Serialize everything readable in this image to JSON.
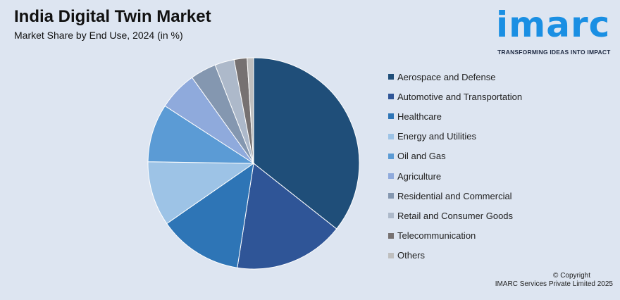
{
  "header": {
    "title": "India Digital Twin Market",
    "subtitle": "Market Share by End Use, 2024 (in %)"
  },
  "logo": {
    "word": "imarc",
    "tagline": "TRANSFORMING IDEAS INTO IMPACT",
    "color": "#1a8fe3"
  },
  "footer": {
    "copyright": "© Copyright",
    "company": "IMARC Services Private Limited 2025"
  },
  "chart_data": {
    "type": "pie",
    "title": "India Digital Twin Market",
    "subtitle": "Market Share by End Use, 2024 (in %)",
    "legend_position": "right",
    "categories": [
      "Aerospace and Defense",
      "Automotive and Transportation",
      "Healthcare",
      "Energy and Utilities",
      "Oil and Gas",
      "Agriculture",
      "Residential and Commercial",
      "Retail and Consumer Goods",
      "Telecommunication",
      "Others"
    ],
    "values": [
      36,
      17,
      13,
      10,
      9,
      6,
      4,
      3,
      2,
      1
    ],
    "colors": [
      "#1f4e79",
      "#2f5597",
      "#2e75b6",
      "#9dc3e6",
      "#5b9bd5",
      "#8faadc",
      "#8497b0",
      "#adb9ca",
      "#767171",
      "#bfbfbf"
    ]
  }
}
